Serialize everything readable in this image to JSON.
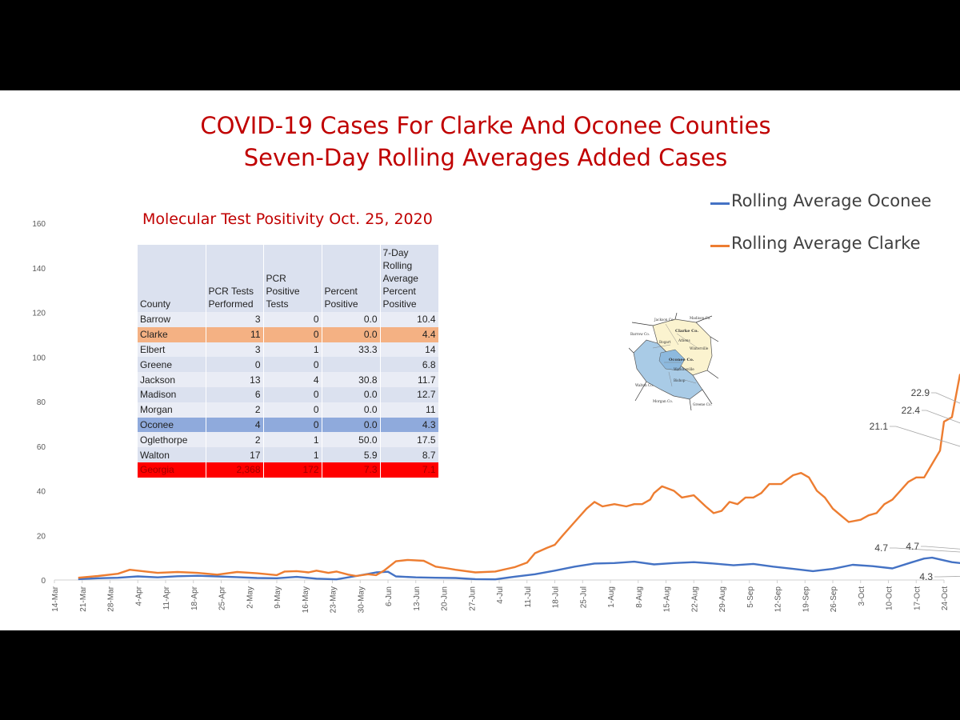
{
  "title": {
    "line1": "COVID-19 Cases For Clarke And Oconee Counties",
    "line2": "Seven-Day Rolling Averages Added Cases"
  },
  "legend": [
    {
      "label": "Rolling Average Oconee",
      "color": "#4472c4"
    },
    {
      "label": "Rolling Average Clarke",
      "color": "#ed7d31"
    }
  ],
  "table": {
    "title": "Molecular Test Positivity Oct. 25, 2020",
    "headers": [
      "County",
      "PCR Tests Performed",
      "PCR Positive Tests",
      "Percent Positive",
      "7-Day Rolling Average Percent Positive"
    ],
    "rows": [
      {
        "county": "Barrow",
        "tests": "3",
        "positive": "0",
        "percent": "0.0",
        "avg": "10.4"
      },
      {
        "county": "Clarke",
        "tests": "11",
        "positive": "0",
        "percent": "0.0",
        "avg": "4.4",
        "highlight": "#f4b183"
      },
      {
        "county": "Elbert",
        "tests": "3",
        "positive": "1",
        "percent": "33.3",
        "avg": "14"
      },
      {
        "county": "Greene",
        "tests": "0",
        "positive": "0",
        "percent": "",
        "avg": "6.8"
      },
      {
        "county": "Jackson",
        "tests": "13",
        "positive": "4",
        "percent": "30.8",
        "avg": "11.7"
      },
      {
        "county": "Madison",
        "tests": "6",
        "positive": "0",
        "percent": "0.0",
        "avg": "12.7"
      },
      {
        "county": "Morgan",
        "tests": "2",
        "positive": "0",
        "percent": "0.0",
        "avg": "11"
      },
      {
        "county": "Oconee",
        "tests": "4",
        "positive": "0",
        "percent": "0.0",
        "avg": "4.3",
        "highlight": "#8faadc"
      },
      {
        "county": "Oglethorpe",
        "tests": "2",
        "positive": "1",
        "percent": "50.0",
        "avg": "17.5"
      },
      {
        "county": "Walton",
        "tests": "17",
        "positive": "1",
        "percent": "5.9",
        "avg": "8.7"
      },
      {
        "county": "Georgia",
        "tests": "2,368",
        "positive": "172",
        "percent": "7.3",
        "avg": "7.1",
        "highlight": "#ff0000"
      }
    ]
  },
  "map": {
    "labels": [
      "Jackson Co.",
      "Madison Co.",
      "Barrow Co.",
      "Clarke Co.",
      "Athens",
      "Winterville",
      "Bogart",
      "Walton Co.",
      "Oconee Co.",
      "Watkinsville",
      "Bishop",
      "Morgan Co.",
      "Greene Co."
    ]
  },
  "chart_data": {
    "type": "line",
    "title": "",
    "xlabel": "",
    "ylabel": "",
    "ylim": [
      0,
      160
    ],
    "yticks": [
      "0",
      "20",
      "40",
      "60",
      "80",
      "100",
      "120",
      "140",
      "160"
    ],
    "xticks": [
      "14-Mar",
      "21-Mar",
      "28-Mar",
      "4-Apr",
      "11-Apr",
      "18-Apr",
      "25-Apr",
      "2-May",
      "9-May",
      "16-May",
      "23-May",
      "30-May",
      "6-Jun",
      "13-Jun",
      "20-Jun",
      "27-Jun",
      "4-Jul",
      "11-Jul",
      "18-Jul",
      "25-Jul",
      "1-Aug",
      "8-Aug",
      "15-Aug",
      "22-Aug",
      "29-Aug",
      "5-Sep",
      "12-Sep",
      "19-Sep",
      "26-Sep",
      "3-Oct",
      "10-Oct",
      "17-Oct",
      "24-Oct"
    ],
    "x_start": "2020-03-14",
    "grid": false,
    "legend": "top-right",
    "series": [
      {
        "name": "Rolling Average Oconee",
        "color": "#4472c4",
        "start_date": "2020-03-20",
        "points": [
          [
            0,
            0.4
          ],
          [
            5,
            0.8
          ],
          [
            10,
            1.0
          ],
          [
            15,
            1.6
          ],
          [
            20,
            1.2
          ],
          [
            25,
            1.7
          ],
          [
            30,
            1.9
          ],
          [
            35,
            1.6
          ],
          [
            40,
            1.3
          ],
          [
            45,
            0.9
          ],
          [
            50,
            0.8
          ],
          [
            55,
            1.4
          ],
          [
            60,
            0.6
          ],
          [
            65,
            0.3
          ],
          [
            70,
            1.8
          ],
          [
            75,
            3.4
          ],
          [
            78,
            3.7
          ],
          [
            80,
            1.6
          ],
          [
            85,
            1.2
          ],
          [
            90,
            1.0
          ],
          [
            95,
            0.9
          ],
          [
            100,
            0.4
          ],
          [
            105,
            0.3
          ],
          [
            110,
            1.5
          ],
          [
            115,
            2.6
          ],
          [
            120,
            4.2
          ],
          [
            125,
            6.0
          ],
          [
            130,
            7.4
          ],
          [
            135,
            7.6
          ],
          [
            140,
            8.2
          ],
          [
            145,
            7.0
          ],
          [
            150,
            7.6
          ],
          [
            155,
            8.0
          ],
          [
            160,
            7.4
          ],
          [
            165,
            6.6
          ],
          [
            170,
            7.2
          ],
          [
            175,
            6.0
          ],
          [
            180,
            5.0
          ],
          [
            185,
            4.0
          ],
          [
            190,
            5.0
          ],
          [
            195,
            6.8
          ],
          [
            200,
            6.2
          ],
          [
            205,
            5.2
          ],
          [
            210,
            8.0
          ],
          [
            213,
            9.6
          ],
          [
            215,
            10.0
          ],
          [
            220,
            8.0
          ],
          [
            225,
            7.0
          ],
          [
            230,
            6.6
          ],
          [
            235,
            7.4
          ],
          [
            240,
            5.2
          ],
          [
            245,
            4.8
          ],
          [
            250,
            4.2
          ],
          [
            255,
            4.6
          ],
          [
            260,
            3.8
          ],
          [
            265,
            4.0
          ],
          [
            270,
            3.4
          ],
          [
            275,
            4.2
          ],
          [
            280,
            4.0
          ],
          [
            285,
            4.6
          ],
          [
            290,
            4.7
          ],
          [
            292,
            4.7
          ],
          [
            294,
            4.3
          ]
        ],
        "labels": [
          {
            "day": 292,
            "text": "4.7"
          },
          {
            "day": 293,
            "text": "4.7"
          },
          {
            "day": 294,
            "text": "4.3"
          }
        ]
      },
      {
        "name": "Rolling Average Clarke",
        "color": "#ed7d31",
        "start_date": "2020-03-20",
        "points": [
          [
            0,
            1.0
          ],
          [
            5,
            1.8
          ],
          [
            10,
            2.8
          ],
          [
            13,
            4.6
          ],
          [
            17,
            3.8
          ],
          [
            20,
            3.2
          ],
          [
            25,
            3.6
          ],
          [
            30,
            3.2
          ],
          [
            35,
            2.4
          ],
          [
            40,
            3.6
          ],
          [
            45,
            3.0
          ],
          [
            50,
            2.2
          ],
          [
            52,
            3.8
          ],
          [
            55,
            4.0
          ],
          [
            58,
            3.4
          ],
          [
            60,
            4.2
          ],
          [
            63,
            3.2
          ],
          [
            65,
            3.8
          ],
          [
            68,
            2.4
          ],
          [
            70,
            1.8
          ],
          [
            73,
            2.6
          ],
          [
            75,
            2.2
          ],
          [
            77,
            4.2
          ],
          [
            80,
            8.4
          ],
          [
            83,
            9.0
          ],
          [
            87,
            8.6
          ],
          [
            90,
            6.0
          ],
          [
            93,
            5.2
          ],
          [
            95,
            4.6
          ],
          [
            100,
            3.4
          ],
          [
            105,
            3.8
          ],
          [
            110,
            5.8
          ],
          [
            113,
            7.8
          ],
          [
            115,
            12.0
          ],
          [
            118,
            14.4
          ],
          [
            120,
            15.8
          ],
          [
            122,
            20.0
          ],
          [
            125,
            26.0
          ],
          [
            128,
            32.0
          ],
          [
            130,
            35.0
          ],
          [
            132,
            33.0
          ],
          [
            135,
            34.0
          ],
          [
            138,
            33.0
          ],
          [
            140,
            34.0
          ],
          [
            142,
            34.0
          ],
          [
            144,
            36.0
          ],
          [
            145,
            39.0
          ],
          [
            147,
            42.0
          ],
          [
            150,
            40.0
          ],
          [
            152,
            37.0
          ],
          [
            155,
            38.0
          ],
          [
            158,
            33.0
          ],
          [
            160,
            30.0
          ],
          [
            162,
            31.0
          ],
          [
            164,
            35.0
          ],
          [
            166,
            34.0
          ],
          [
            168,
            37.0
          ],
          [
            170,
            37.0
          ],
          [
            172,
            39.0
          ],
          [
            174,
            43.0
          ],
          [
            177,
            43.0
          ],
          [
            180,
            47.0
          ],
          [
            182,
            48.0
          ],
          [
            184,
            46.0
          ],
          [
            186,
            40.0
          ],
          [
            188,
            37.0
          ],
          [
            190,
            32.0
          ],
          [
            192,
            29.0
          ],
          [
            194,
            26.0
          ],
          [
            197,
            27.0
          ],
          [
            199,
            29.0
          ],
          [
            201,
            30.0
          ],
          [
            203,
            34.0
          ],
          [
            205,
            36.0
          ],
          [
            207,
            40.0
          ],
          [
            209,
            44.0
          ],
          [
            211,
            46.0
          ],
          [
            213,
            46.0
          ],
          [
            215,
            52.0
          ],
          [
            217,
            58.0
          ],
          [
            218,
            71.0
          ],
          [
            220,
            73.0
          ],
          [
            222,
            92.0
          ],
          [
            224,
            95.0
          ],
          [
            226,
            128.0
          ],
          [
            228,
            129.0
          ],
          [
            230,
            126.0
          ],
          [
            232,
            135.0
          ],
          [
            233,
            137.0
          ],
          [
            235,
            124.0
          ],
          [
            236,
            129.0
          ],
          [
            238,
            106.0
          ],
          [
            240,
            107.0
          ],
          [
            242,
            92.0
          ],
          [
            244,
            86.0
          ],
          [
            246,
            78.0
          ],
          [
            248,
            68.0
          ],
          [
            250,
            56.0
          ],
          [
            252,
            50.0
          ],
          [
            254,
            40.0
          ],
          [
            256,
            31.0
          ],
          [
            258,
            27.0
          ],
          [
            260,
            24.0
          ],
          [
            262,
            22.0
          ],
          [
            264,
            21.0
          ],
          [
            266,
            21.0
          ],
          [
            268,
            19.0
          ],
          [
            270,
            22.0
          ],
          [
            272,
            24.0
          ],
          [
            274,
            22.0
          ],
          [
            276,
            24.0
          ],
          [
            278,
            23.0
          ],
          [
            280,
            25.0
          ],
          [
            282,
            26.0
          ],
          [
            284,
            29.0
          ],
          [
            285,
            30.0
          ],
          [
            287,
            26.0
          ],
          [
            289,
            25.0
          ],
          [
            291,
            23.0
          ],
          [
            292,
            21.1
          ],
          [
            293,
            20.0
          ],
          [
            294,
            22.4
          ],
          [
            295,
            22.9
          ]
        ],
        "labels": [
          {
            "day": 292,
            "text": "21.1"
          },
          {
            "day": 294,
            "text": "22.4"
          },
          {
            "day": 295,
            "text": "22.9"
          }
        ]
      }
    ]
  }
}
